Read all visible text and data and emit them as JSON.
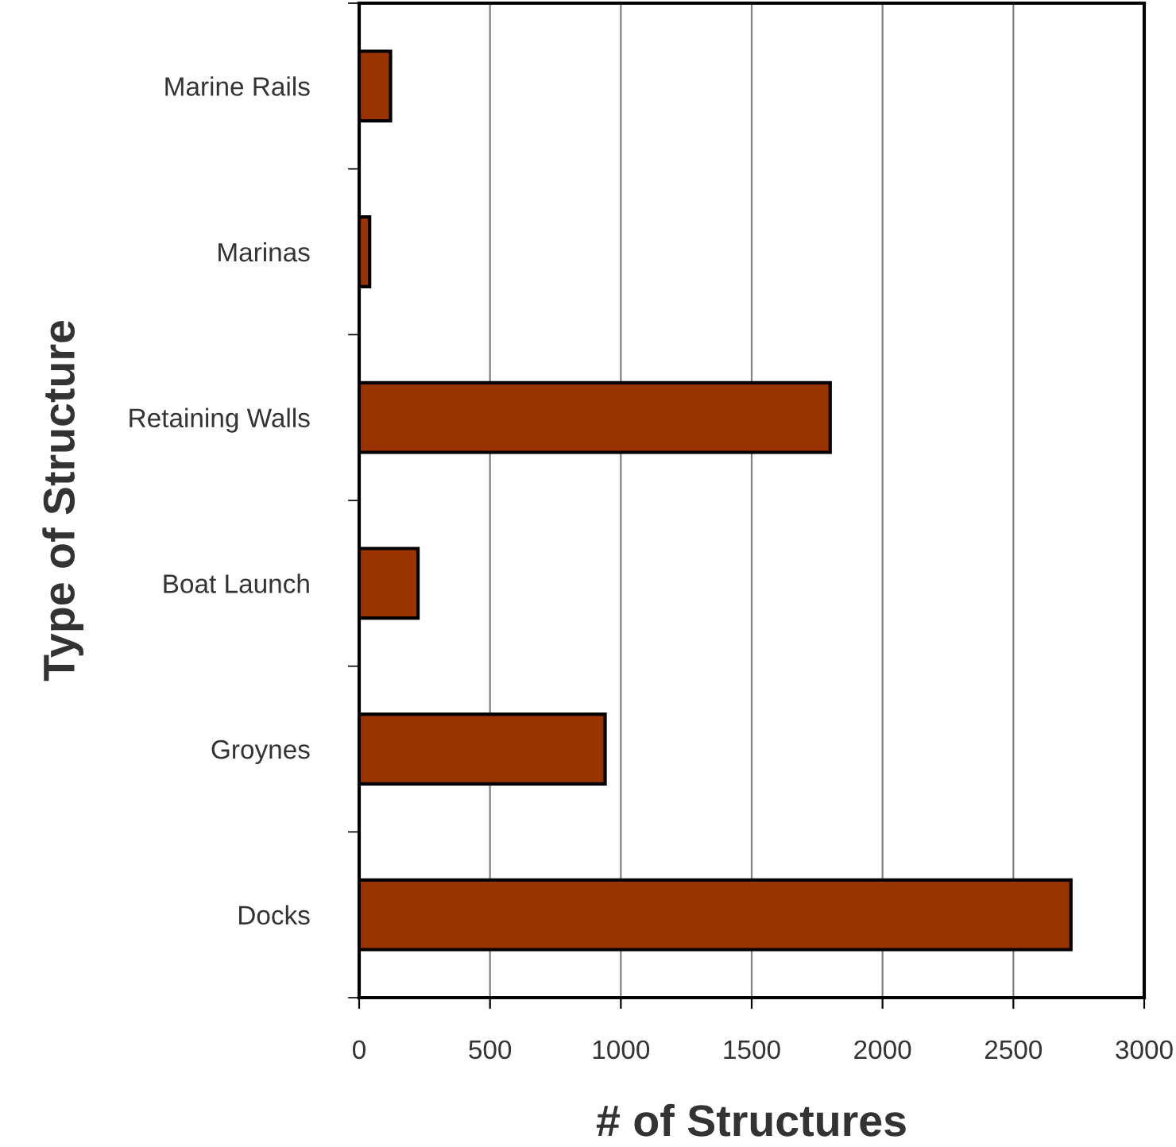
{
  "chart_data": {
    "type": "bar",
    "orientation": "horizontal",
    "xlabel": "# of Structures",
    "ylabel": "Type of Structure",
    "categories": [
      "Marine Rails",
      "Marinas",
      "Retaining Walls",
      "Boat Launch",
      "Groynes",
      "Docks"
    ],
    "values": [
      120,
      40,
      1800,
      225,
      940,
      2720
    ],
    "color": "#993300",
    "xlim": [
      0,
      3000
    ],
    "xticks": [
      0,
      500,
      1000,
      1500,
      2000,
      2500,
      3000
    ],
    "grid": "x",
    "legend": false
  }
}
